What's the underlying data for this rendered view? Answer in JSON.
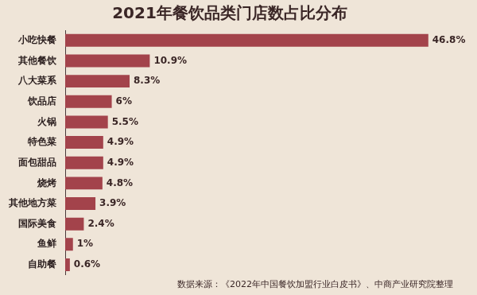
{
  "chart_data": {
    "type": "bar",
    "orientation": "horizontal",
    "title": "2021年餐饮品类门店数占比分布",
    "source": "数据来源：《2022年中国餐饮加盟行业白皮书》、中商产业研究院整理",
    "categories": [
      "小吃快餐",
      "其他餐饮",
      "八大菜系",
      "饮品店",
      "火锅",
      "特色菜",
      "面包甜品",
      "烧烤",
      "其他地方菜",
      "国际美食",
      "鱼鲜",
      "自助餐"
    ],
    "values": [
      46.8,
      10.9,
      8.3,
      6,
      5.5,
      4.9,
      4.9,
      4.8,
      3.9,
      2.4,
      1,
      0.6
    ],
    "value_labels": [
      "46.8%",
      "10.9%",
      "8.3%",
      "6%",
      "5.5%",
      "4.9%",
      "4.9%",
      "4.8%",
      "3.9%",
      "2.4%",
      "1%",
      "0.6%"
    ],
    "color": "#a3434b",
    "xlim": [
      0,
      50
    ],
    "grid": false,
    "data_labels": true,
    "tick_labels": "y"
  }
}
